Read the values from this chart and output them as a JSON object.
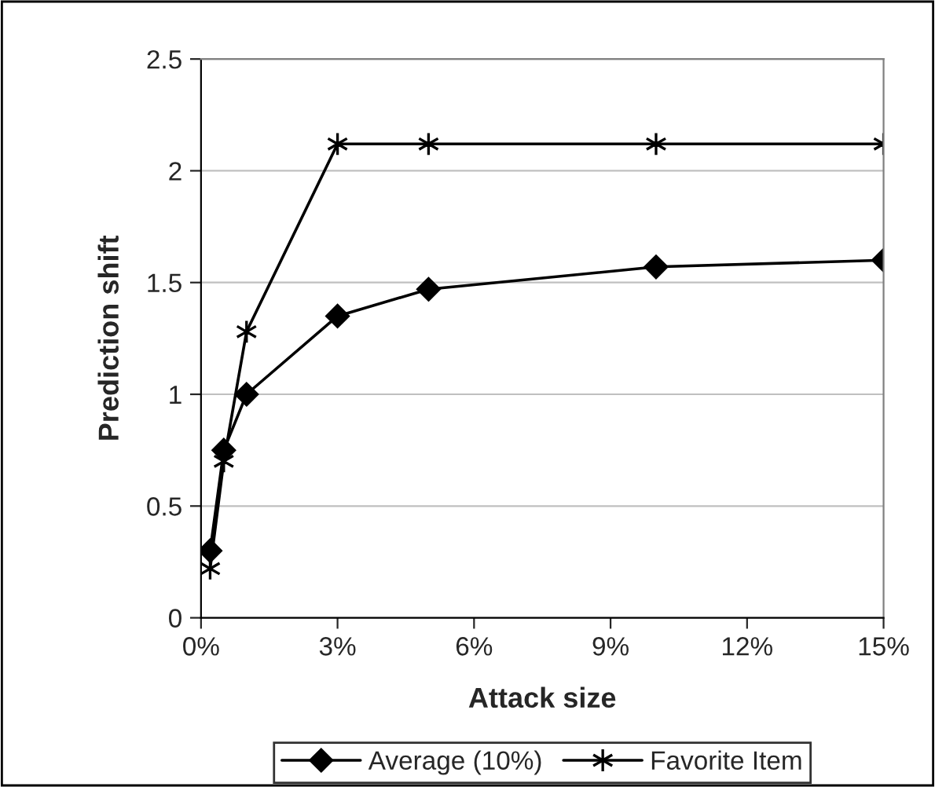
{
  "chart_data": {
    "type": "line",
    "xlabel": "Attack size",
    "ylabel": "Prediction shift",
    "x": [
      0.2,
      0.5,
      1,
      3,
      5,
      10,
      15
    ],
    "series": [
      {
        "name": "Average (10%)",
        "color": "#000000",
        "marker": "diamond",
        "values": [
          0.3,
          0.75,
          1.0,
          1.35,
          1.47,
          1.57,
          1.6
        ]
      },
      {
        "name": "Favorite Item",
        "color": "#000000",
        "marker": "cross",
        "values": [
          0.22,
          0.7,
          1.28,
          2.12,
          2.12,
          2.12,
          2.12
        ]
      }
    ],
    "xlim": [
      0,
      15
    ],
    "xticks": [
      {
        "value": 0,
        "label": "0%"
      },
      {
        "value": 3,
        "label": "3%"
      },
      {
        "value": 6,
        "label": "6%"
      },
      {
        "value": 9,
        "label": "9%"
      },
      {
        "value": 12,
        "label": "12%"
      },
      {
        "value": 15,
        "label": "15%"
      }
    ],
    "ylim": [
      0,
      2.5
    ],
    "yticks": [
      0,
      0.5,
      1,
      1.5,
      2,
      2.5
    ],
    "grid": "y",
    "legend": "bottom",
    "line_style": "solid"
  }
}
